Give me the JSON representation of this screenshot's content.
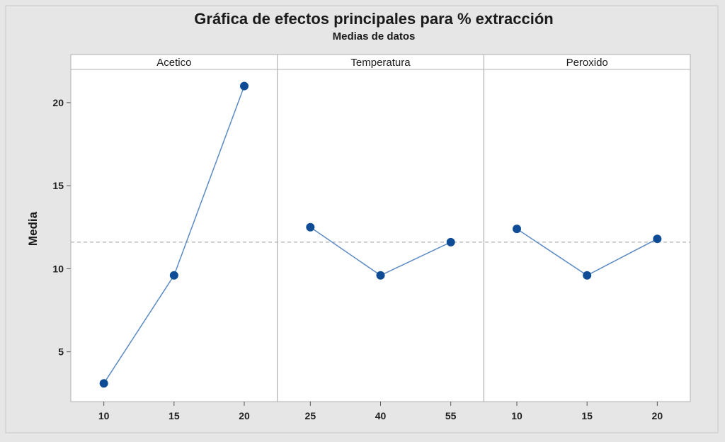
{
  "chart_data": {
    "type": "line",
    "title": "Gráfica de efectos principales para % extracción",
    "subtitle": "Medias de datos",
    "ylabel": "Media",
    "ylim": [
      2,
      22
    ],
    "yticks": [
      5,
      10,
      15,
      20
    ],
    "reference_line": 11.6,
    "grid": false,
    "colors": {
      "line": "#5b8ac4",
      "point": "#0f4c96",
      "reference": "#9a9a9a",
      "background": "#e6e6e6",
      "panel": "#ffffff"
    },
    "panels": [
      {
        "name": "Acetico",
        "x": [
          "10",
          "15",
          "20"
        ],
        "values": [
          3.1,
          9.6,
          21.0
        ]
      },
      {
        "name": "Temperatura",
        "x": [
          "25",
          "40",
          "55"
        ],
        "values": [
          12.5,
          9.6,
          11.6
        ]
      },
      {
        "name": "Peroxido",
        "x": [
          "10",
          "15",
          "20"
        ],
        "values": [
          12.4,
          9.6,
          11.8
        ]
      }
    ]
  }
}
